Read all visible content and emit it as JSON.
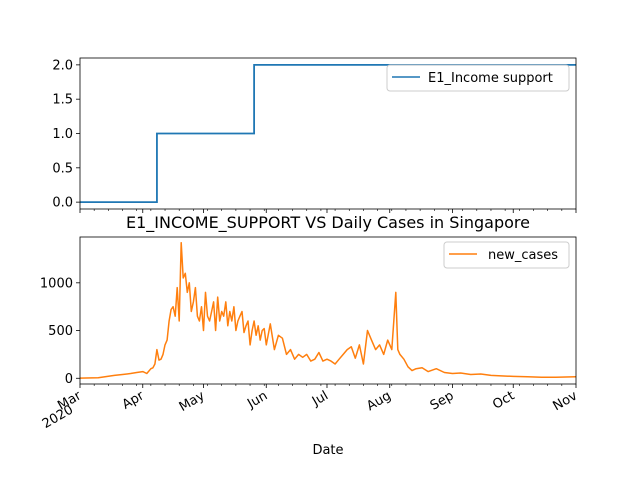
{
  "chart_data": [
    {
      "type": "line",
      "title": "",
      "xlabel": "",
      "ylabel": "",
      "ylim": [
        -0.1,
        2.1
      ],
      "yticks": [
        0.0,
        0.5,
        1.0,
        1.5,
        2.0
      ],
      "ytick_labels": [
        "0.0",
        "0.5",
        "1.0",
        "1.5",
        "2.0"
      ],
      "legend_position": "top-right",
      "x_range": [
        "2020-03-01",
        "2020-11-01"
      ],
      "series": [
        {
          "name": "E1_Income support",
          "color": "#1f77b4",
          "step": true,
          "x": [
            "2020-03-01",
            "2020-04-08",
            "2020-05-26",
            "2020-11-01"
          ],
          "y": [
            0,
            1,
            2,
            2
          ]
        }
      ]
    },
    {
      "type": "line",
      "title": "E1_INCOME_SUPPORT VS Daily Cases in Singapore",
      "xlabel": "Date",
      "ylabel": "",
      "ylim": [
        -60,
        1480
      ],
      "yticks": [
        0,
        500,
        1000
      ],
      "ytick_labels": [
        "0",
        "500",
        "1000"
      ],
      "legend_position": "top-right",
      "x_range": [
        "2020-03-01",
        "2020-11-01"
      ],
      "xticks": [
        "2020-03-01",
        "2020-04-01",
        "2020-05-01",
        "2020-06-01",
        "2020-07-01",
        "2020-08-01",
        "2020-09-01",
        "2020-10-01",
        "2020-11-01"
      ],
      "xtick_labels": [
        "Mar\n2020",
        "Apr",
        "May",
        "Jun",
        "Jul",
        "Aug",
        "Sep",
        "Oct",
        "Nov"
      ],
      "series": [
        {
          "name": "new_cases",
          "color": "#ff7f0e",
          "x": [
            "2020-03-01",
            "2020-03-10",
            "2020-03-18",
            "2020-03-22",
            "2020-03-26",
            "2020-03-29",
            "2020-04-01",
            "2020-04-03",
            "2020-04-05",
            "2020-04-06",
            "2020-04-07",
            "2020-04-08",
            "2020-04-09",
            "2020-04-10",
            "2020-04-11",
            "2020-04-12",
            "2020-04-13",
            "2020-04-14",
            "2020-04-15",
            "2020-04-16",
            "2020-04-17",
            "2020-04-18",
            "2020-04-19",
            "2020-04-20",
            "2020-04-21",
            "2020-04-22",
            "2020-04-23",
            "2020-04-24",
            "2020-04-25",
            "2020-04-26",
            "2020-04-27",
            "2020-04-28",
            "2020-04-29",
            "2020-04-30",
            "2020-05-01",
            "2020-05-02",
            "2020-05-03",
            "2020-05-04",
            "2020-05-05",
            "2020-05-06",
            "2020-05-07",
            "2020-05-08",
            "2020-05-09",
            "2020-05-10",
            "2020-05-11",
            "2020-05-12",
            "2020-05-13",
            "2020-05-14",
            "2020-05-15",
            "2020-05-16",
            "2020-05-17",
            "2020-05-18",
            "2020-05-19",
            "2020-05-20",
            "2020-05-21",
            "2020-05-22",
            "2020-05-23",
            "2020-05-24",
            "2020-05-25",
            "2020-05-26",
            "2020-05-27",
            "2020-05-28",
            "2020-05-29",
            "2020-05-30",
            "2020-05-31",
            "2020-06-01",
            "2020-06-03",
            "2020-06-05",
            "2020-06-07",
            "2020-06-09",
            "2020-06-11",
            "2020-06-13",
            "2020-06-15",
            "2020-06-17",
            "2020-06-19",
            "2020-06-21",
            "2020-06-23",
            "2020-06-25",
            "2020-06-27",
            "2020-06-29",
            "2020-07-01",
            "2020-07-03",
            "2020-07-05",
            "2020-07-07",
            "2020-07-09",
            "2020-07-11",
            "2020-07-13",
            "2020-07-15",
            "2020-07-17",
            "2020-07-19",
            "2020-07-21",
            "2020-07-23",
            "2020-07-25",
            "2020-07-27",
            "2020-07-29",
            "2020-07-31",
            "2020-08-02",
            "2020-08-04",
            "2020-08-05",
            "2020-08-06",
            "2020-08-08",
            "2020-08-10",
            "2020-08-12",
            "2020-08-14",
            "2020-08-17",
            "2020-08-20",
            "2020-08-24",
            "2020-08-28",
            "2020-09-01",
            "2020-09-05",
            "2020-09-10",
            "2020-09-15",
            "2020-09-20",
            "2020-09-25",
            "2020-10-01",
            "2020-10-08",
            "2020-10-15",
            "2020-10-22",
            "2020-11-01"
          ],
          "y": [
            2,
            5,
            30,
            40,
            50,
            60,
            70,
            50,
            100,
            110,
            150,
            300,
            190,
            200,
            250,
            350,
            400,
            600,
            720,
            750,
            650,
            950,
            600,
            1420,
            1050,
            1100,
            900,
            1000,
            700,
            800,
            950,
            650,
            600,
            750,
            500,
            900,
            650,
            600,
            700,
            800,
            500,
            850,
            600,
            700,
            650,
            800,
            550,
            700,
            600,
            750,
            500,
            600,
            650,
            700,
            480,
            550,
            600,
            350,
            500,
            600,
            450,
            550,
            400,
            500,
            520,
            350,
            570,
            300,
            450,
            420,
            250,
            300,
            200,
            250,
            220,
            250,
            180,
            200,
            270,
            180,
            200,
            180,
            150,
            200,
            250,
            300,
            330,
            210,
            350,
            150,
            500,
            400,
            300,
            350,
            250,
            400,
            300,
            900,
            300,
            250,
            200,
            120,
            80,
            100,
            110,
            70,
            100,
            60,
            50,
            55,
            40,
            45,
            30,
            25,
            20,
            15,
            10,
            10,
            15
          ]
        }
      ]
    }
  ]
}
